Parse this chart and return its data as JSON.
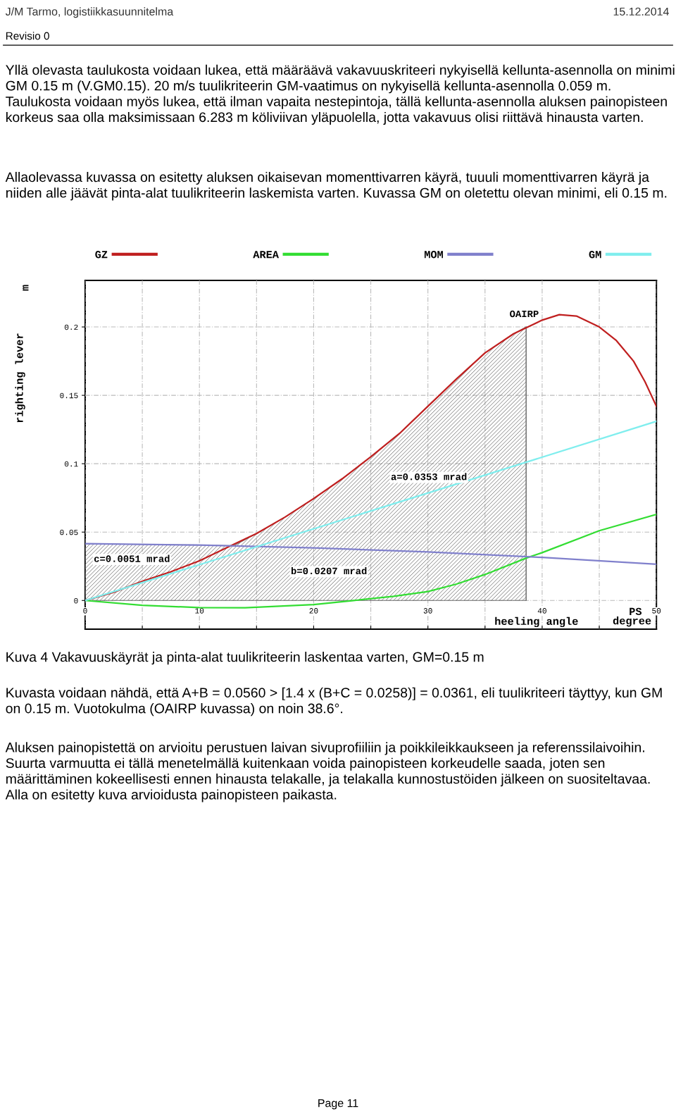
{
  "chart_data": {
    "type": "line",
    "xlabel": "heeling angle",
    "ylabel": "righting lever",
    "xlim": [
      0,
      50
    ],
    "ylim": [
      -0.021,
      0.234
    ],
    "xticks": [
      0,
      {
        "value": 5,
        "label": null
      },
      10,
      {
        "value": 15,
        "label": null
      },
      20,
      {
        "value": 25,
        "label": null
      },
      30,
      {
        "value": 35,
        "label": null
      },
      40,
      {
        "value": 45,
        "label": null
      },
      50
    ],
    "yticks": [
      0,
      0.05,
      0.1,
      0.15,
      0.2
    ],
    "grid": true,
    "legend": "top",
    "series": [
      {
        "type": "area",
        "color": "#707070",
        "x": [
          0,
          5,
          10,
          13,
          15,
          17.5,
          20,
          22.5,
          25,
          27.5,
          30,
          32.5,
          35,
          37.5,
          38.6
        ],
        "values": [
          0.0415,
          0.041,
          0.0405,
          0.04,
          0.049,
          0.061,
          0.0745,
          0.089,
          0.105,
          0.122,
          0.142,
          0.162,
          0.181,
          0.195,
          0.2
        ]
      },
      {
        "name": "GZ",
        "color": "#c02020",
        "x": [
          0,
          2.5,
          5,
          7.5,
          10,
          12.5,
          15,
          17.5,
          20,
          22.5,
          25,
          27.5,
          30,
          32.5,
          35,
          37.5,
          40,
          41.5,
          43,
          45,
          46.5,
          48,
          49,
          50
        ],
        "values": [
          0,
          0.006,
          0.014,
          0.021,
          0.029,
          0.039,
          0.049,
          0.061,
          0.0745,
          0.089,
          0.105,
          0.122,
          0.142,
          0.162,
          0.181,
          0.195,
          0.205,
          0.209,
          0.208,
          0.2,
          0.19,
          0.175,
          0.16,
          0.142
        ]
      },
      {
        "name": "AREA",
        "color": "#33dd33",
        "x": [
          0,
          5,
          10,
          14,
          20,
          23.5,
          27,
          30,
          32.5,
          35,
          38.6,
          40,
          45,
          50
        ],
        "values": [
          0,
          -0.0035,
          -0.0052,
          -0.0053,
          -0.003,
          0,
          0.003,
          0.0065,
          0.012,
          0.019,
          0.031,
          0.035,
          0.051,
          0.063
        ]
      },
      {
        "name": "MOM",
        "color": "#8080cc",
        "x": [
          0,
          10,
          20,
          30,
          40,
          50
        ],
        "values": [
          0.0415,
          0.0405,
          0.0385,
          0.0355,
          0.0315,
          0.0265
        ]
      },
      {
        "name": "GM",
        "color": "#80eeee",
        "x": [
          0,
          50
        ],
        "values": [
          0,
          0.131
        ]
      }
    ],
    "annotations": [
      "J/M Tarmo, logistiikkasuunnitelma",
      "15.12.2014",
      "Revisio 0",
      "Yllä olevasta taulukosta voidaan lukea, että määräävä vakavuuskriteeri nykyisellä kellunta-asennolla on minimi GM 0.15 m (V.GM0.15). 20 m/s tuulikriteerin GM-vaatimus on nykyisellä kellunta-asennolla 0.059 m. Taulukosta voidaan myös lukea, että ilman vapaita nestepintoja, tällä kellunta-asennolla aluksen painopisteen korkeus saa olla maksimissaan 6.283 m köliviivan yläpuolella, jotta vakavuus olisi riittävä hinausta varten.",
      "Allaolevassa kuvassa on esitetty aluksen oikaisevan momenttivarren käyrä, tuuuli momenttivarren käyrä ja niiden alle jäävät pinta-alat tuulikriteerin laskemista varten. Kuvassa GM on oletettu olevan minimi, eli 0.15 m.",
      "m",
      "degree",
      "PS",
      "Kuva 4 Vakavuuskäyrät ja pinta-alat tuulikriteerin laskentaa varten, GM=0.15 m",
      "Kuvasta voidaan nähdä, että A+B = 0.0560 > [1.4 x (B+C = 0.0258)] = 0.0361, eli tuulikriteeri täyttyy, kun GM on 0.15 m. Vuotokulma (OAIRP kuvassa) on noin 38.6°.",
      "Aluksen painopistettä on arvioitu perustuen laivan sivuprofiiliin ja poikkileikkaukseen ja referenssilaivoihin. Suurta varmuutta ei tällä menetelmällä kuitenkaan voida painopisteen korkeudelle saada, joten sen määrittäminen kokeellisesti ennen hinausta telakalle, ja telakalla kunnostustöiden jälkeen on suositeltavaa. Alla on esitetty kuva arvioidusta painopisteen paikasta.",
      "Page 11",
      {
        "text": "OAIRP",
        "x": 38.6,
        "y": 0.2
      },
      "a=0.0353 mrad",
      "b=0.0207 mrad",
      "c=0.0051 mrad"
    ]
  }
}
